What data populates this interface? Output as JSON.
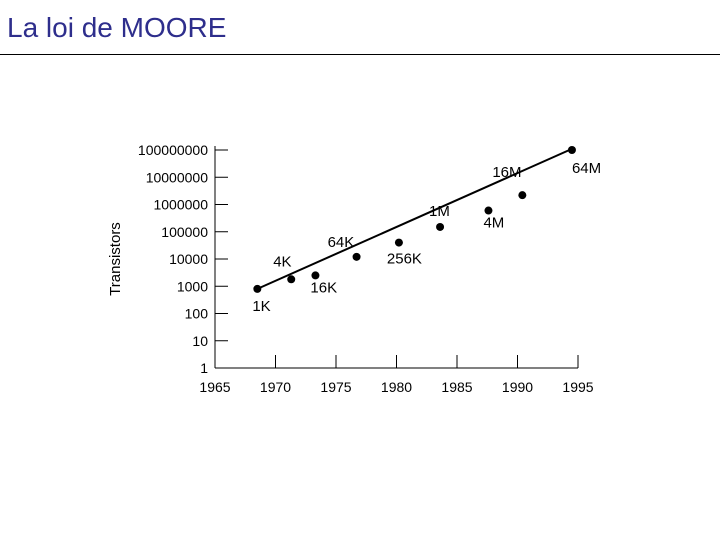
{
  "slide": {
    "title": "La loi de MOORE",
    "title_color": "#2e2e8c"
  },
  "chart_data": {
    "type": "line",
    "title": "",
    "xlabel": "",
    "ylabel": "Transistors",
    "y_scale": "log",
    "xlim": [
      1965,
      1995
    ],
    "ylim": [
      1,
      100000000
    ],
    "x_ticks": [
      "1965",
      "1970",
      "1975",
      "1980",
      "1985",
      "1990",
      "1995"
    ],
    "y_ticks": [
      "1",
      "10",
      "100",
      "1000",
      "10000",
      "100000",
      "1000000",
      "10000000",
      "100000000"
    ],
    "grid": false,
    "legend": "none",
    "trend_line": {
      "x": [
        1968.5,
        1994.5
      ],
      "y": [
        800,
        110000000
      ]
    },
    "points": [
      {
        "label": "1K",
        "x": 1968.5,
        "y": 800
      },
      {
        "label": "4K",
        "x": 1971.3,
        "y": 1800
      },
      {
        "label": "16K",
        "x": 1973.3,
        "y": 2500
      },
      {
        "label": "64K",
        "x": 1976.7,
        "y": 12000
      },
      {
        "label": "256K",
        "x": 1980.2,
        "y": 40000
      },
      {
        "label": "1M",
        "x": 1983.6,
        "y": 150000
      },
      {
        "label": "4M",
        "x": 1987.6,
        "y": 600000
      },
      {
        "label": "16M",
        "x": 1990.4,
        "y": 2200000
      },
      {
        "label": "64M",
        "x": 1994.5,
        "y": 100000000
      }
    ],
    "color": "#000000"
  }
}
